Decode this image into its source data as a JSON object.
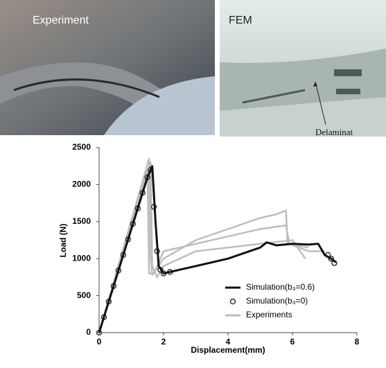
{
  "panels": [
    {
      "label": "Experiment"
    },
    {
      "label": "FEM",
      "annotation": "Delaminat"
    }
  ],
  "chart_data": {
    "type": "line",
    "xlabel": "Displacement(mm)",
    "ylabel": "Load (N)",
    "xlim": [
      0,
      8
    ],
    "xticks": [
      0,
      2,
      4,
      6,
      8
    ],
    "ylim": [
      0,
      2500
    ],
    "yticks": [
      0,
      500,
      1000,
      1500,
      2000,
      2500
    ],
    "grid": false,
    "legend": "lower right",
    "series": [
      {
        "name": "Experiments",
        "color": "#bdbdbd",
        "marker": "none",
        "line": true,
        "x": [
          0,
          1.55,
          1.6,
          1.65,
          2,
          3,
          4,
          5,
          5.5,
          5.8,
          5.85,
          6.5,
          null,
          0,
          1.5,
          1.55,
          1.7,
          2,
          3,
          4,
          5,
          5.8,
          5.9,
          6.5,
          7,
          null,
          0,
          1.6,
          1.65,
          1.8,
          2,
          3,
          4,
          5,
          6,
          6.4
        ],
        "values": [
          0,
          2350,
          1000,
          780,
          1000,
          1250,
          1400,
          1550,
          1600,
          1650,
          1200,
          1150,
          null,
          0,
          2200,
          800,
          800,
          1100,
          1200,
          1300,
          1400,
          1450,
          1200,
          1100,
          1100,
          null,
          0,
          2300,
          900,
          750,
          900,
          1100,
          1150,
          1200,
          1250,
          1000
        ]
      },
      {
        "name": "Simulation(b₃=0)",
        "color": "#333333",
        "marker": "circle",
        "line": false,
        "x": [
          0,
          0.15,
          0.3,
          0.45,
          0.6,
          0.75,
          0.9,
          1.05,
          1.2,
          1.35,
          1.5,
          1.6,
          1.7,
          1.8,
          1.9,
          2.0,
          2.2,
          7.1,
          7.2,
          7.3
        ],
        "values": [
          0,
          210,
          420,
          630,
          840,
          1050,
          1260,
          1470,
          1680,
          1890,
          2100,
          2200,
          1700,
          1100,
          850,
          800,
          820,
          1050,
          1000,
          940
        ]
      },
      {
        "name": "Simulation(b₃=0.6)",
        "color": "#111111",
        "marker": "none",
        "line": true,
        "x": [
          0,
          0.5,
          1,
          1.5,
          1.65,
          1.75,
          1.85,
          2,
          2.5,
          3,
          4,
          5,
          5.2,
          5.5,
          6,
          6.5,
          6.8,
          7,
          7.2,
          7.35
        ],
        "values": [
          0,
          700,
          1400,
          2100,
          2250,
          1500,
          900,
          800,
          850,
          900,
          1000,
          1150,
          1220,
          1180,
          1200,
          1190,
          1200,
          1050,
          1000,
          950
        ]
      }
    ]
  }
}
